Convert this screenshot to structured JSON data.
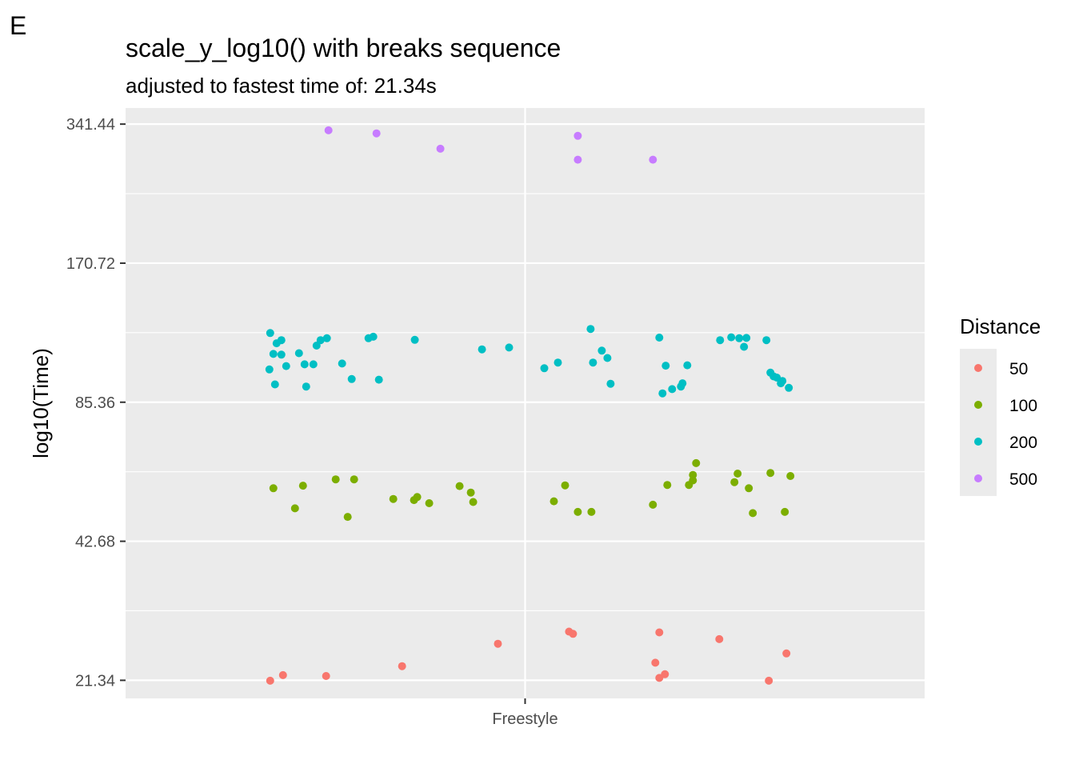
{
  "panel_tag": "E",
  "chart_data": {
    "type": "scatter",
    "title": "scale_y_log10() with breaks sequence",
    "subtitle": "adjusted to fastest time of: 21.34s",
    "xlabel": "",
    "ylabel": "log10(Time)",
    "y_scale": "log10",
    "ylim": [
      19.5,
      370
    ],
    "y_breaks": [
      21.34,
      42.68,
      85.36,
      170.72,
      341.44
    ],
    "y_break_labels": [
      "21.34",
      "42.68",
      "85.36",
      "170.72",
      "341.44"
    ],
    "categories": [
      "Freestyle"
    ],
    "x_jitter_range": [
      -0.5,
      0.5
    ],
    "grid": true,
    "legend_position": "right",
    "legend_title": "Distance",
    "series": [
      {
        "name": "50",
        "color": "#F8766D",
        "points": [
          [
            -0.319,
            21.3
          ],
          [
            -0.303,
            21.9
          ],
          [
            -0.249,
            21.8
          ],
          [
            -0.154,
            22.9
          ],
          [
            -0.034,
            25.6
          ],
          [
            0.055,
            27.2
          ],
          [
            0.06,
            26.9
          ],
          [
            0.163,
            23.3
          ],
          [
            0.168,
            21.6
          ],
          [
            0.168,
            27.1
          ],
          [
            0.175,
            22.0
          ],
          [
            0.243,
            26.2
          ],
          [
            0.305,
            21.3
          ],
          [
            0.327,
            24.4
          ]
        ]
      },
      {
        "name": "100",
        "color": "#7CAE00",
        "points": [
          [
            -0.315,
            55.6
          ],
          [
            -0.288,
            50.3
          ],
          [
            -0.278,
            56.3
          ],
          [
            -0.237,
            58.1
          ],
          [
            -0.222,
            48.2
          ],
          [
            -0.214,
            58.1
          ],
          [
            -0.165,
            52.7
          ],
          [
            -0.139,
            52.4
          ],
          [
            -0.135,
            53.2
          ],
          [
            -0.12,
            51.6
          ],
          [
            -0.082,
            56.2
          ],
          [
            -0.068,
            54.4
          ],
          [
            -0.065,
            51.9
          ],
          [
            0.036,
            52.1
          ],
          [
            0.05,
            56.4
          ],
          [
            0.066,
            49.4
          ],
          [
            0.083,
            49.4
          ],
          [
            0.16,
            51.2
          ],
          [
            0.178,
            56.5
          ],
          [
            0.205,
            56.5
          ],
          [
            0.21,
            59.4
          ],
          [
            0.21,
            57.8
          ],
          [
            0.214,
            63.0
          ],
          [
            0.262,
            57.3
          ],
          [
            0.266,
            59.8
          ],
          [
            0.28,
            55.6
          ],
          [
            0.285,
            49.1
          ],
          [
            0.307,
            60.0
          ],
          [
            0.325,
            49.4
          ],
          [
            0.332,
            59.1
          ]
        ]
      },
      {
        "name": "200",
        "color": "#00BFC4",
        "points": [
          [
            -0.32,
            100.5
          ],
          [
            -0.319,
            120.5
          ],
          [
            -0.315,
            108.6
          ],
          [
            -0.313,
            93.3
          ],
          [
            -0.311,
            114.5
          ],
          [
            -0.305,
            116.3
          ],
          [
            -0.305,
            108.2
          ],
          [
            -0.299,
            102.2
          ],
          [
            -0.283,
            109.0
          ],
          [
            -0.276,
            103.1
          ],
          [
            -0.274,
            92.3
          ],
          [
            -0.265,
            103.1
          ],
          [
            -0.261,
            113.2
          ],
          [
            -0.256,
            116.3
          ],
          [
            -0.248,
            117.4
          ],
          [
            -0.229,
            103.5
          ],
          [
            -0.217,
            95.8
          ],
          [
            -0.196,
            117.4
          ],
          [
            -0.19,
            118.3
          ],
          [
            -0.183,
            95.5
          ],
          [
            -0.138,
            116.5
          ],
          [
            -0.054,
            111.1
          ],
          [
            -0.02,
            112.1
          ],
          [
            0.024,
            101.1
          ],
          [
            0.041,
            104.0
          ],
          [
            0.082,
            123.0
          ],
          [
            0.085,
            104.0
          ],
          [
            0.096,
            110.4
          ],
          [
            0.103,
            106.4
          ],
          [
            0.107,
            93.6
          ],
          [
            0.168,
            117.8
          ],
          [
            0.172,
            89.2
          ],
          [
            0.176,
            102.4
          ],
          [
            0.184,
            91.1
          ],
          [
            0.195,
            92.3
          ],
          [
            0.197,
            93.8
          ],
          [
            0.203,
            102.6
          ],
          [
            0.244,
            116.3
          ],
          [
            0.258,
            118.0
          ],
          [
            0.268,
            117.4
          ],
          [
            0.274,
            112.5
          ],
          [
            0.277,
            117.6
          ],
          [
            0.302,
            116.3
          ],
          [
            0.307,
            98.9
          ],
          [
            0.311,
            97.1
          ],
          [
            0.315,
            96.5
          ],
          [
            0.32,
            93.8
          ],
          [
            0.322,
            94.9
          ],
          [
            0.33,
            91.7
          ]
        ]
      },
      {
        "name": "500",
        "color": "#C77CFF",
        "points": [
          [
            -0.246,
            331.0
          ],
          [
            -0.186,
            326.0
          ],
          [
            -0.106,
            302.0
          ],
          [
            0.066,
            322.0
          ],
          [
            0.066,
            286.0
          ],
          [
            0.16,
            286.0
          ]
        ]
      }
    ]
  }
}
